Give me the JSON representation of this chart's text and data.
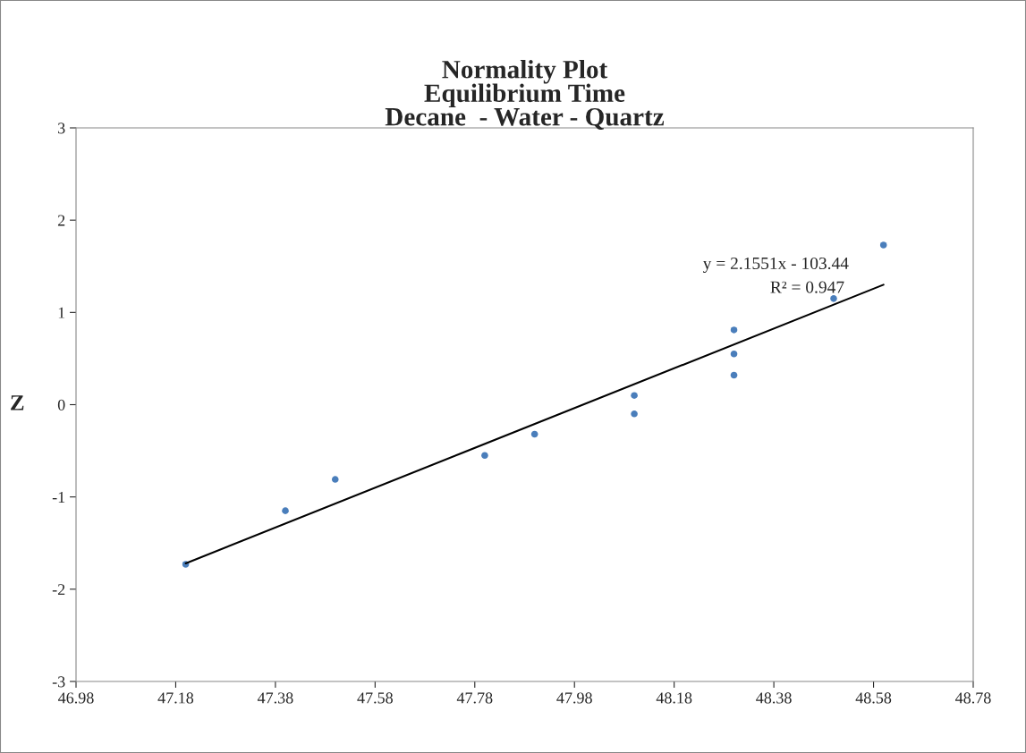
{
  "chart_data": {
    "type": "scatter",
    "title": "Normality Plot\nEquilibrium Time\nDecane  - Water - Quartz",
    "ylabel": "Z",
    "annotations": [
      "y = 2.1551x - 103.44",
      "R² = 0.947"
    ],
    "series": [
      {
        "color": "#4a7ebb",
        "marker": "circle",
        "x": [
          47.2,
          47.4,
          47.5,
          47.8,
          47.9,
          48.1,
          48.1,
          48.3,
          48.3,
          48.3,
          48.5,
          48.6
        ],
        "values": [
          -1.73,
          -1.15,
          -0.81,
          -0.55,
          -0.32,
          -0.1,
          0.1,
          0.32,
          0.55,
          0.81,
          1.15,
          1.73
        ]
      },
      {
        "type": "line",
        "color": "#000000",
        "marker": "none",
        "line_style": "solid",
        "x": [
          47.2,
          48.6
        ],
        "values": [
          -1.72,
          1.3
        ]
      }
    ],
    "xlim": [
      46.98,
      48.78
    ],
    "xticks": [
      46.98,
      47.18,
      47.38,
      47.58,
      47.78,
      47.98,
      48.18,
      48.38,
      48.58,
      48.78
    ],
    "ylim": [
      -3,
      3
    ],
    "yticks": [
      -3,
      -2,
      -1,
      0,
      1,
      2,
      3
    ],
    "grid": false,
    "legend": false
  }
}
